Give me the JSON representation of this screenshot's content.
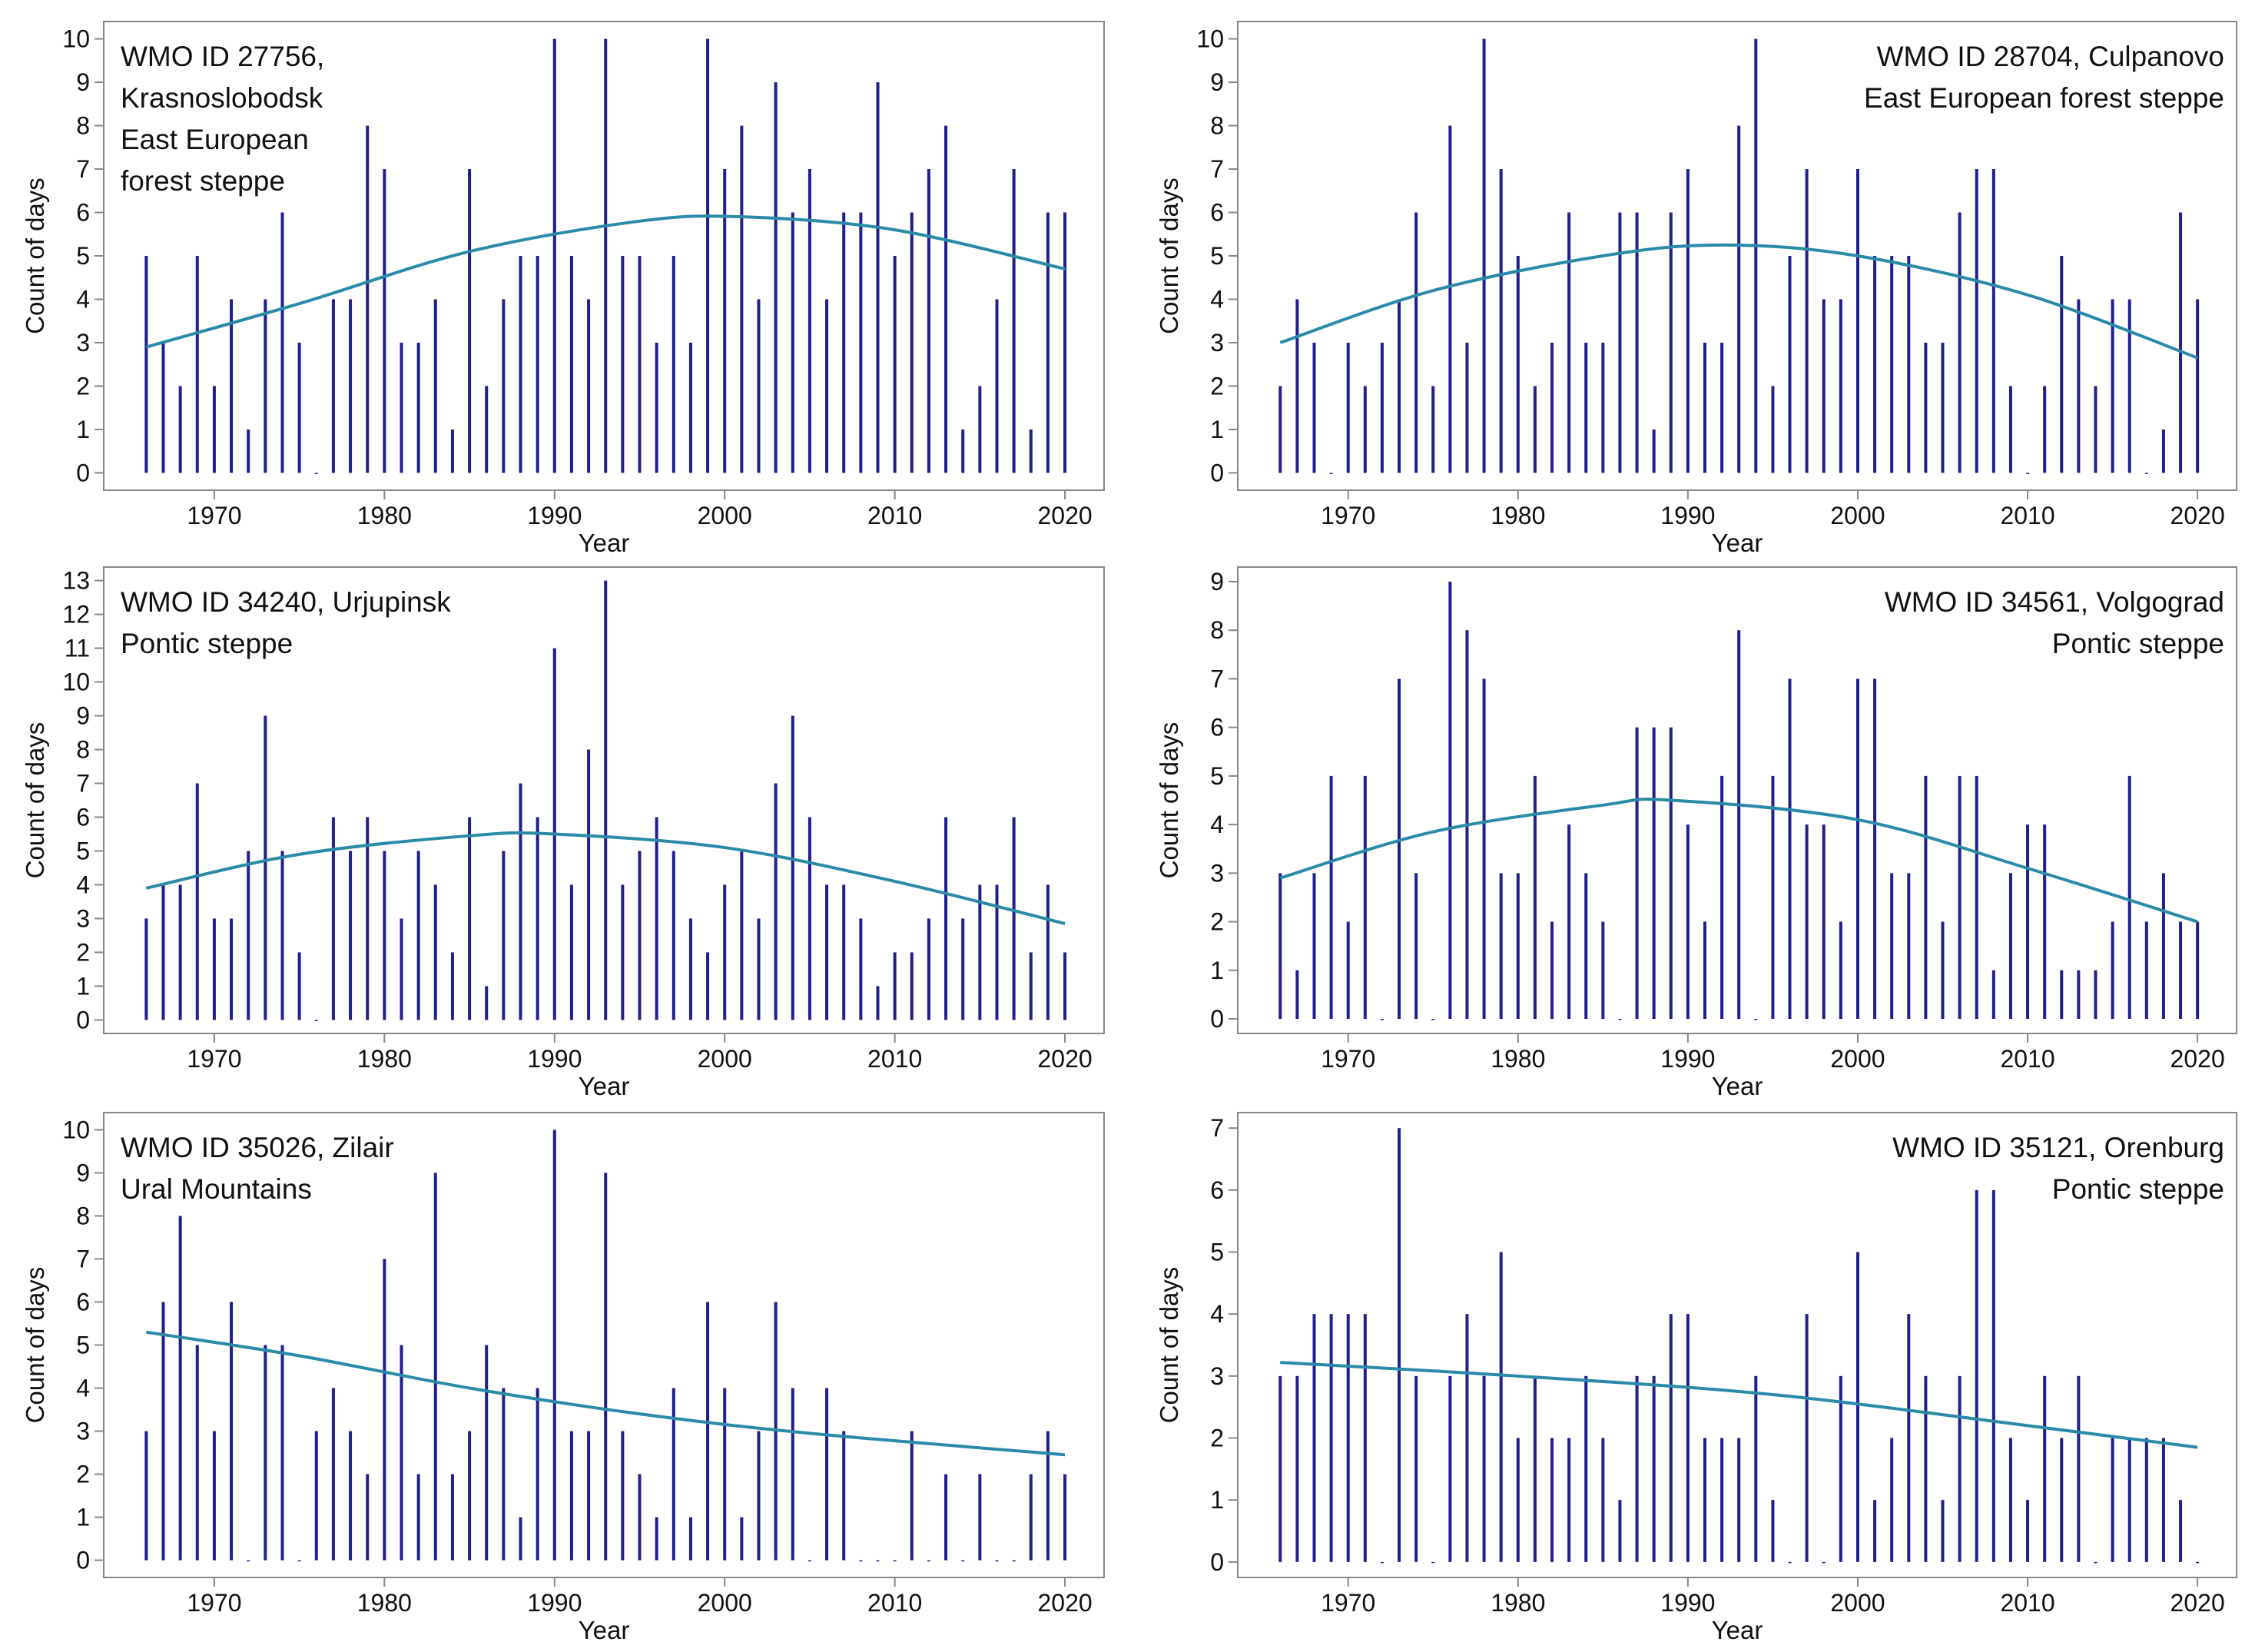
{
  "chart_data": [
    {
      "type": "bar",
      "annotation": [
        "WMO ID 27756,",
        "Krasnoslobodsk",
        "East European",
        "forest steppe"
      ],
      "annotation_corner": "left",
      "x_label": "Year",
      "y_label": "Count of days",
      "color": "#1f1f8f",
      "x": [
        1966,
        1967,
        1968,
        1969,
        1970,
        1971,
        1972,
        1973,
        1974,
        1975,
        1976,
        1977,
        1978,
        1979,
        1980,
        1981,
        1982,
        1983,
        1984,
        1985,
        1986,
        1987,
        1988,
        1989,
        1990,
        1991,
        1992,
        1993,
        1994,
        1995,
        1996,
        1997,
        1998,
        1999,
        2000,
        2001,
        2002,
        2003,
        2004,
        2005,
        2006,
        2007,
        2008,
        2009,
        2010,
        2011,
        2012,
        2013,
        2014,
        2015,
        2016,
        2017,
        2018,
        2019,
        2020
      ],
      "values": [
        5,
        3,
        2,
        5,
        2,
        4,
        1,
        4,
        6,
        3,
        0,
        4,
        4,
        8,
        7,
        3,
        3,
        4,
        1,
        7,
        2,
        4,
        5,
        5,
        10,
        5,
        4,
        10,
        5,
        5,
        3,
        5,
        3,
        10,
        7,
        8,
        4,
        9,
        6,
        7,
        4,
        6,
        6,
        9,
        5,
        6,
        7,
        8,
        1,
        2,
        4,
        7,
        1,
        6,
        6
      ],
      "trend": {
        "color": "#2a8aa8",
        "x": [
          1966,
          1975,
          1985,
          1995,
          2001,
          2010,
          2020
        ],
        "values": [
          2.9,
          3.9,
          5.1,
          5.8,
          5.9,
          5.6,
          4.7
        ]
      },
      "xlim": [
        1963.5,
        2022.3
      ],
      "ylim": [
        -0.4,
        10.4
      ],
      "xticks": [
        1970,
        1980,
        1990,
        2000,
        2010,
        2020
      ],
      "yticks": [
        0,
        1,
        2,
        3,
        4,
        5,
        6,
        7,
        8,
        9,
        10
      ]
    },
    {
      "type": "bar",
      "annotation": [
        "WMO ID 28704, Culpanovo",
        "East European forest steppe"
      ],
      "annotation_corner": "right",
      "x_label": "Year",
      "y_label": "Count of days",
      "color": "#1f1f8f",
      "x": [
        1966,
        1967,
        1968,
        1969,
        1970,
        1971,
        1972,
        1973,
        1974,
        1975,
        1976,
        1977,
        1978,
        1979,
        1980,
        1981,
        1982,
        1983,
        1984,
        1985,
        1986,
        1987,
        1988,
        1989,
        1990,
        1991,
        1992,
        1993,
        1994,
        1995,
        1996,
        1997,
        1998,
        1999,
        2000,
        2001,
        2002,
        2003,
        2004,
        2005,
        2006,
        2007,
        2008,
        2009,
        2010,
        2011,
        2012,
        2013,
        2014,
        2015,
        2016,
        2017,
        2018,
        2019,
        2020
      ],
      "values": [
        2,
        4,
        3,
        0,
        3,
        2,
        3,
        4,
        6,
        2,
        8,
        3,
        10,
        7,
        5,
        2,
        3,
        6,
        3,
        3,
        6,
        6,
        1,
        6,
        7,
        3,
        3,
        8,
        10,
        2,
        5,
        7,
        4,
        4,
        7,
        5,
        5,
        5,
        3,
        3,
        6,
        7,
        7,
        2,
        0,
        2,
        5,
        4,
        2,
        4,
        4,
        0,
        1,
        6,
        4
      ],
      "trend": {
        "color": "#2a8aa8",
        "x": [
          1966,
          1975,
          1985,
          1992,
          2000,
          2010,
          2020
        ],
        "values": [
          3.0,
          4.2,
          5.0,
          5.25,
          5.0,
          4.1,
          2.65
        ]
      },
      "xlim": [
        1963.5,
        2022.3
      ],
      "ylim": [
        -0.4,
        10.4
      ],
      "xticks": [
        1970,
        1980,
        1990,
        2000,
        2010,
        2020
      ],
      "yticks": [
        0,
        1,
        2,
        3,
        4,
        5,
        6,
        7,
        8,
        9,
        10
      ]
    },
    {
      "type": "bar",
      "annotation": [
        "WMO ID 34240, Urjupinsk",
        "Pontic steppe"
      ],
      "annotation_corner": "left",
      "x_label": "Year",
      "y_label": "Count of days",
      "color": "#1f1f8f",
      "x": [
        1966,
        1967,
        1968,
        1969,
        1970,
        1971,
        1972,
        1973,
        1974,
        1975,
        1976,
        1977,
        1978,
        1979,
        1980,
        1981,
        1982,
        1983,
        1984,
        1985,
        1986,
        1987,
        1988,
        1989,
        1990,
        1991,
        1992,
        1993,
        1994,
        1995,
        1996,
        1997,
        1998,
        1999,
        2000,
        2001,
        2002,
        2003,
        2004,
        2005,
        2006,
        2007,
        2008,
        2009,
        2010,
        2011,
        2012,
        2013,
        2014,
        2015,
        2016,
        2017,
        2018,
        2019,
        2020
      ],
      "values": [
        3,
        4,
        4,
        7,
        3,
        3,
        5,
        9,
        5,
        2,
        0,
        6,
        5,
        6,
        5,
        3,
        5,
        4,
        2,
        6,
        1,
        5,
        7,
        6,
        11,
        4,
        8,
        13,
        4,
        5,
        6,
        5,
        3,
        2,
        4,
        5,
        3,
        7,
        9,
        6,
        4,
        4,
        3,
        1,
        2,
        2,
        3,
        6,
        3,
        4,
        4,
        6,
        2,
        4,
        2
      ],
      "trend": {
        "color": "#2a8aa8",
        "x": [
          1966,
          1975,
          1985,
          1990,
          2000,
          2010,
          2020
        ],
        "values": [
          3.9,
          4.9,
          5.45,
          5.5,
          5.1,
          4.1,
          2.85
        ]
      },
      "xlim": [
        1963.5,
        2022.3
      ],
      "ylim": [
        -0.4,
        13.4
      ],
      "xticks": [
        1970,
        1980,
        1990,
        2000,
        2010,
        2020
      ],
      "yticks": [
        0,
        1,
        2,
        3,
        4,
        5,
        6,
        7,
        8,
        9,
        10,
        11,
        12,
        13
      ]
    },
    {
      "type": "bar",
      "annotation": [
        "WMO ID 34561, Volgograd",
        "Pontic steppe"
      ],
      "annotation_corner": "right",
      "x_label": "Year",
      "y_label": "Count of days",
      "color": "#1f1f8f",
      "x": [
        1966,
        1967,
        1968,
        1969,
        1970,
        1971,
        1972,
        1973,
        1974,
        1975,
        1976,
        1977,
        1978,
        1979,
        1980,
        1981,
        1982,
        1983,
        1984,
        1985,
        1986,
        1987,
        1988,
        1989,
        1990,
        1991,
        1992,
        1993,
        1994,
        1995,
        1996,
        1997,
        1998,
        1999,
        2000,
        2001,
        2002,
        2003,
        2004,
        2005,
        2006,
        2007,
        2008,
        2009,
        2010,
        2011,
        2012,
        2013,
        2014,
        2015,
        2016,
        2017,
        2018,
        2019,
        2020
      ],
      "values": [
        3,
        1,
        3,
        5,
        2,
        5,
        0,
        7,
        3,
        0,
        9,
        8,
        7,
        3,
        3,
        5,
        2,
        4,
        3,
        2,
        0,
        6,
        6,
        6,
        4,
        2,
        5,
        8,
        0,
        5,
        7,
        4,
        4,
        2,
        7,
        7,
        3,
        3,
        5,
        2,
        5,
        5,
        1,
        3,
        4,
        4,
        1,
        1,
        1,
        2,
        5,
        2,
        3,
        2,
        2
      ],
      "trend": {
        "color": "#2a8aa8",
        "x": [
          1966,
          1975,
          1985,
          1989,
          2000,
          2010,
          2020
        ],
        "values": [
          2.9,
          3.85,
          4.4,
          4.5,
          4.1,
          3.1,
          2.0
        ]
      },
      "xlim": [
        1963.5,
        2022.3
      ],
      "ylim": [
        -0.3,
        9.3
      ],
      "xticks": [
        1970,
        1980,
        1990,
        2000,
        2010,
        2020
      ],
      "yticks": [
        0,
        1,
        2,
        3,
        4,
        5,
        6,
        7,
        8,
        9
      ]
    },
    {
      "type": "bar",
      "annotation": [
        "WMO ID 35026, Zilair",
        "Ural Mountains"
      ],
      "annotation_corner": "left",
      "x_label": "Year",
      "y_label": "Count of days",
      "color": "#1f1f8f",
      "x": [
        1966,
        1967,
        1968,
        1969,
        1970,
        1971,
        1972,
        1973,
        1974,
        1975,
        1976,
        1977,
        1978,
        1979,
        1980,
        1981,
        1982,
        1983,
        1984,
        1985,
        1986,
        1987,
        1988,
        1989,
        1990,
        1991,
        1992,
        1993,
        1994,
        1995,
        1996,
        1997,
        1998,
        1999,
        2000,
        2001,
        2002,
        2003,
        2004,
        2005,
        2006,
        2007,
        2008,
        2009,
        2010,
        2011,
        2012,
        2013,
        2014,
        2015,
        2016,
        2017,
        2018,
        2019,
        2020
      ],
      "values": [
        3,
        6,
        8,
        5,
        3,
        6,
        0,
        5,
        5,
        0,
        3,
        4,
        3,
        2,
        7,
        5,
        2,
        9,
        2,
        3,
        5,
        4,
        1,
        4,
        10,
        3,
        3,
        9,
        3,
        2,
        1,
        4,
        1,
        6,
        4,
        1,
        3,
        6,
        4,
        0,
        4,
        3,
        0,
        0,
        0,
        3,
        0,
        2,
        0,
        2,
        0,
        0,
        2,
        3,
        2
      ],
      "trend": {
        "color": "#2a8aa8",
        "x": [
          1966,
          1975,
          1985,
          1995,
          2005,
          2020
        ],
        "values": [
          5.3,
          4.75,
          4.0,
          3.4,
          2.95,
          2.45
        ]
      },
      "xlim": [
        1963.5,
        2022.3
      ],
      "ylim": [
        -0.4,
        10.4
      ],
      "xticks": [
        1970,
        1980,
        1990,
        2000,
        2010,
        2020
      ],
      "yticks": [
        0,
        1,
        2,
        3,
        4,
        5,
        6,
        7,
        8,
        9,
        10
      ]
    },
    {
      "type": "bar",
      "annotation": [
        "WMO ID 35121, Orenburg",
        "Pontic steppe"
      ],
      "annotation_corner": "right",
      "x_label": "Year",
      "y_label": "Count of days",
      "color": "#1f1f8f",
      "x": [
        1966,
        1967,
        1968,
        1969,
        1970,
        1971,
        1972,
        1973,
        1974,
        1975,
        1976,
        1977,
        1978,
        1979,
        1980,
        1981,
        1982,
        1983,
        1984,
        1985,
        1986,
        1987,
        1988,
        1989,
        1990,
        1991,
        1992,
        1993,
        1994,
        1995,
        1996,
        1997,
        1998,
        1999,
        2000,
        2001,
        2002,
        2003,
        2004,
        2005,
        2006,
        2007,
        2008,
        2009,
        2010,
        2011,
        2012,
        2013,
        2014,
        2015,
        2016,
        2017,
        2018,
        2019,
        2020
      ],
      "values": [
        3,
        3,
        4,
        4,
        4,
        4,
        0,
        7,
        3,
        0,
        3,
        4,
        3,
        5,
        2,
        3,
        2,
        2,
        3,
        2,
        1,
        3,
        3,
        4,
        4,
        2,
        2,
        2,
        3,
        1,
        0,
        4,
        0,
        3,
        5,
        1,
        2,
        4,
        3,
        1,
        3,
        6,
        6,
        2,
        1,
        3,
        2,
        3,
        0,
        2,
        2,
        2,
        2,
        1,
        0
      ],
      "trend": {
        "color": "#2a8aa8",
        "x": [
          1966,
          1980,
          1995,
          2010,
          2020
        ],
        "values": [
          3.22,
          3.0,
          2.7,
          2.2,
          1.85
        ]
      },
      "xlim": [
        1963.5,
        2022.3
      ],
      "ylim": [
        -0.25,
        7.25
      ],
      "xticks": [
        1970,
        1980,
        1990,
        2000,
        2010,
        2020
      ],
      "yticks": [
        0,
        1,
        2,
        3,
        4,
        5,
        6,
        7
      ]
    }
  ]
}
